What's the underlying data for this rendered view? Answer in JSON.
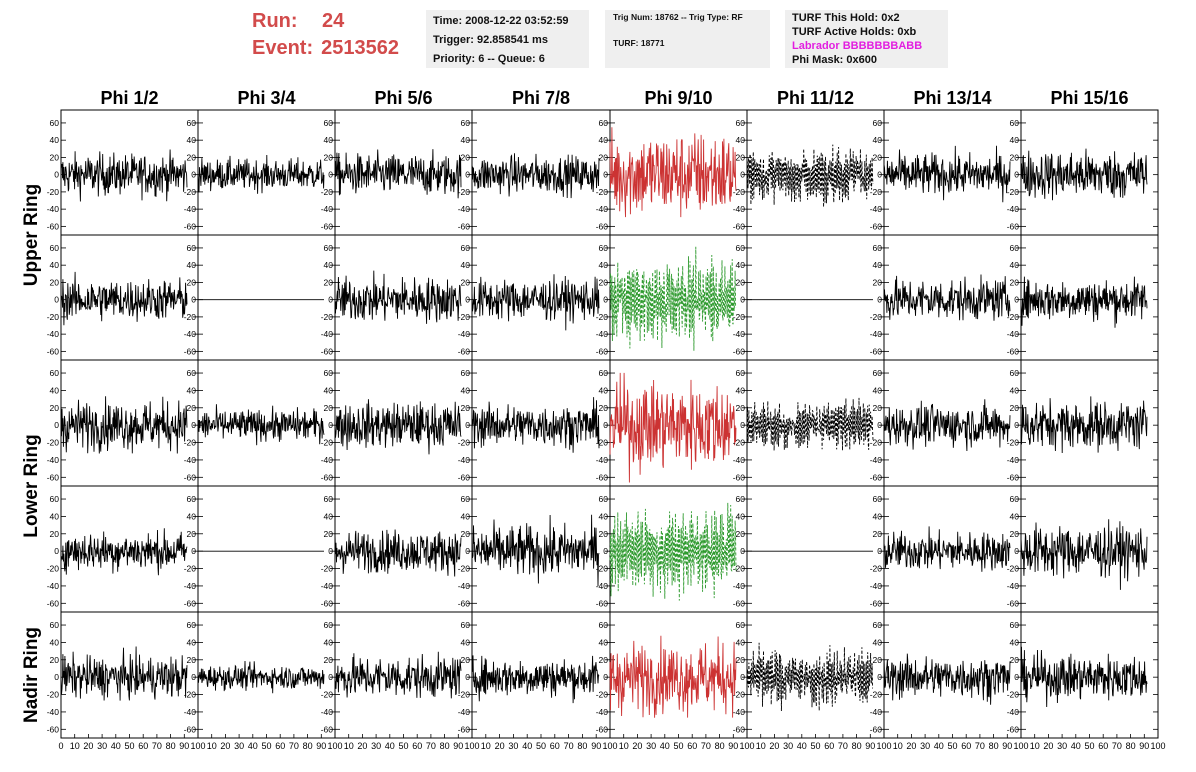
{
  "header": {
    "run_label": "Run:",
    "run_value": "24",
    "event_label": "Event:",
    "event_value": "2513562",
    "time_line": "Time: 2008-12-22 03:52:59",
    "trigger_line": "Trigger: 92.858541 ms",
    "priority_line": "Priority: 6 -- Queue: 6",
    "trig_num_line": "Trig Num: 18762 -- Trig Type: RF",
    "turf_line": "TURF: 18771",
    "turf_hold_line": "TURF This Hold: 0x2",
    "turf_active_line": "TURF Active Holds: 0xb",
    "labrador_line": "Labrador BBBBBBBABB",
    "phi_mask_line": "Phi Mask: 0x600"
  },
  "colors": {
    "run_text": "#d24b4b",
    "labrador_text": "#e21fe0",
    "trace_black": "#000000",
    "trace_red": "#cc3333",
    "trace_green": "#2e9a2e",
    "info_box_bg": "#efefef"
  },
  "chart_data": {
    "type": "line",
    "columns": [
      "Phi 1/2",
      "Phi 3/4",
      "Phi 5/6",
      "Phi 7/8",
      "Phi 9/10",
      "Phi 11/12",
      "Phi 13/14",
      "Phi 15/16"
    ],
    "row_groups": [
      {
        "label": "Upper Ring",
        "rows": [
          0,
          1
        ]
      },
      {
        "label": "Lower Ring",
        "rows": [
          2,
          3
        ]
      },
      {
        "label": "Nadir Ring",
        "rows": [
          4
        ]
      }
    ],
    "xlim": [
      0,
      100
    ],
    "x_trace_range": [
      0,
      92
    ],
    "ylim": [
      -70,
      75
    ],
    "y_ticks": [
      -60,
      -40,
      -20,
      0,
      20,
      40,
      60
    ],
    "x_ticks_first_panel": [
      "0",
      "10",
      "20",
      "30",
      "40",
      "50",
      "60",
      "70",
      "80",
      "90",
      "100"
    ],
    "x_ticks_other_panels": [
      "10",
      "20",
      "30",
      "40",
      "50",
      "60",
      "70",
      "80",
      "90",
      "100"
    ],
    "grid": false,
    "panels": [
      [
        "noise:12",
        "noise:9",
        "noise:12",
        "noise:11",
        "red:25",
        "dashed-black:18",
        "noise:12",
        "noise:14"
      ],
      [
        "noise:12",
        "flat",
        "noise:13",
        "noise:12",
        "dashed-green:28",
        "flat",
        "noise:12",
        "noise:12"
      ],
      [
        "noise:14",
        "noise:9",
        "noise:13",
        "noise:12",
        "red:25",
        "dashed-black:16",
        "noise:12",
        "noise:14"
      ],
      [
        "noise:11",
        "flat",
        "noise:12",
        "noise:15",
        "dashed-green:28",
        "flat",
        "noise:11",
        "noise:15"
      ],
      [
        "noise:12",
        "noise:7",
        "noise:12",
        "noise:11",
        "red:20",
        "dashed-black:18",
        "noise:12",
        "noise:13"
      ]
    ]
  }
}
